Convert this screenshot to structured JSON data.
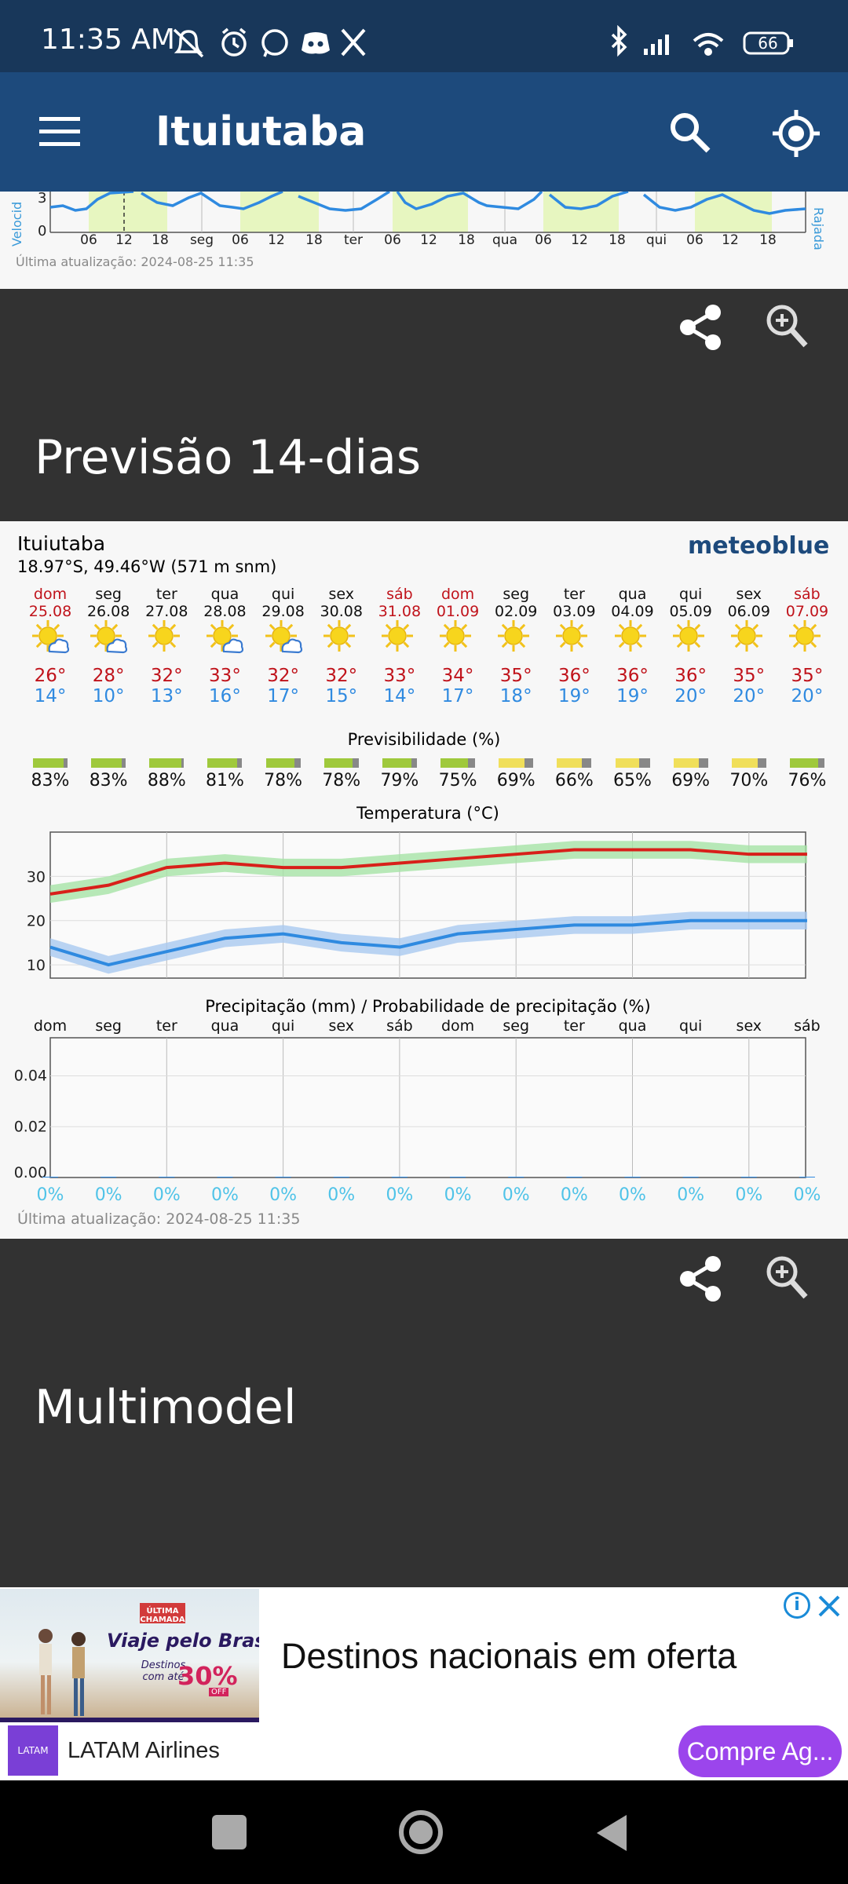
{
  "status_bar": {
    "time": "11:35 AM",
    "battery": "66",
    "notification_icons": [
      "mute-icon",
      "alarm-icon",
      "whatsapp-icon",
      "discord-icon",
      "x-icon"
    ],
    "system_icons": [
      "bluetooth-icon",
      "signal-icon",
      "wifi-icon",
      "battery-icon"
    ]
  },
  "app_bar": {
    "title": "Ituiutaba",
    "icons": [
      "menu-icon",
      "search-icon",
      "location-icon"
    ]
  },
  "top_chart": {
    "ytick_labels": [
      "3",
      "0"
    ],
    "left_axis_label": "Velocid",
    "right_axis_label": "Rajada",
    "xtick_labels": [
      "06",
      "12",
      "18",
      "seg",
      "06",
      "12",
      "18",
      "ter",
      "06",
      "12",
      "18",
      "qua",
      "06",
      "12",
      "18",
      "qui",
      "06",
      "12",
      "18"
    ],
    "last_update": "Última atualização: 2024-08-25 11:35"
  },
  "forecast_section": {
    "heading": "Previsão 14-dias",
    "share_icon": "share-icon",
    "zoom_icon": "zoom-in-icon"
  },
  "forecast": {
    "location": "Ituiutaba",
    "coords": "18.97°S, 49.46°W (571 m snm)",
    "brand": "meteoblue",
    "days": [
      {
        "dow": "dom",
        "date": "25.08",
        "weekend": true,
        "icon": "sun-cloud-icon",
        "tmax": "26°",
        "tmin": "14°",
        "pred": "83%"
      },
      {
        "dow": "seg",
        "date": "26.08",
        "weekend": false,
        "icon": "sun-cloud-icon",
        "tmax": "28°",
        "tmin": "10°",
        "pred": "83%"
      },
      {
        "dow": "ter",
        "date": "27.08",
        "weekend": false,
        "icon": "sun-icon",
        "tmax": "32°",
        "tmin": "13°",
        "pred": "88%"
      },
      {
        "dow": "qua",
        "date": "28.08",
        "weekend": false,
        "icon": "sun-cloud-icon",
        "tmax": "33°",
        "tmin": "16°",
        "pred": "81%"
      },
      {
        "dow": "qui",
        "date": "29.08",
        "weekend": false,
        "icon": "sun-cloud-icon",
        "tmax": "32°",
        "tmin": "17°",
        "pred": "78%"
      },
      {
        "dow": "sex",
        "date": "30.08",
        "weekend": false,
        "icon": "sun-icon",
        "tmax": "32°",
        "tmin": "15°",
        "pred": "78%"
      },
      {
        "dow": "sáb",
        "date": "31.08",
        "weekend": true,
        "icon": "sun-icon",
        "tmax": "33°",
        "tmin": "14°",
        "pred": "79%"
      },
      {
        "dow": "dom",
        "date": "01.09",
        "weekend": true,
        "icon": "sun-icon",
        "tmax": "34°",
        "tmin": "17°",
        "pred": "75%"
      },
      {
        "dow": "seg",
        "date": "02.09",
        "weekend": false,
        "icon": "sun-icon",
        "tmax": "35°",
        "tmin": "18°",
        "pred": "69%"
      },
      {
        "dow": "ter",
        "date": "03.09",
        "weekend": false,
        "icon": "sun-icon",
        "tmax": "36°",
        "tmin": "19°",
        "pred": "66%"
      },
      {
        "dow": "qua",
        "date": "04.09",
        "weekend": false,
        "icon": "sun-icon",
        "tmax": "36°",
        "tmin": "19°",
        "pred": "65%"
      },
      {
        "dow": "qui",
        "date": "05.09",
        "weekend": false,
        "icon": "sun-icon",
        "tmax": "36°",
        "tmin": "20°",
        "pred": "69%"
      },
      {
        "dow": "sex",
        "date": "06.09",
        "weekend": false,
        "icon": "sun-icon",
        "tmax": "35°",
        "tmin": "20°",
        "pred": "70%"
      },
      {
        "dow": "sáb",
        "date": "07.09",
        "weekend": true,
        "icon": "sun-icon",
        "tmax": "35°",
        "tmin": "20°",
        "pred": "76%"
      }
    ],
    "pred_title": "Previsibilidade (%)",
    "pred_colors": {
      "high": "#9fc93c",
      "low": "#f0df5a",
      "bar_end": "#888888"
    },
    "last_update": "Última atualização: 2024-08-25 11:35"
  },
  "chart_data": [
    {
      "type": "line",
      "title": "Temperatura (°C)",
      "categories": [
        "dom",
        "seg",
        "ter",
        "qua",
        "qui",
        "sex",
        "sáb",
        "dom",
        "seg",
        "ter",
        "qua",
        "qui",
        "sex",
        "sáb"
      ],
      "ylim": [
        7,
        40
      ],
      "yticks": [
        10,
        20,
        30
      ],
      "series": [
        {
          "values": [
            26,
            28,
            32,
            33,
            32,
            32,
            33,
            34,
            35,
            36,
            36,
            36,
            35,
            35
          ],
          "color": "#d8201a",
          "band_color": "#a6e3a6",
          "band": 2
        },
        {
          "values": [
            14,
            10,
            13,
            16,
            17,
            15,
            14,
            17,
            18,
            19,
            19,
            20,
            20,
            20
          ],
          "color": "#2f8ae0",
          "band_color": "#a9c9f0",
          "band": 2
        }
      ],
      "grid": true
    },
    {
      "type": "bar",
      "title": "Precipitação (mm) / Probabilidade de precipitação (%)",
      "categories": [
        "dom",
        "seg",
        "ter",
        "qua",
        "qui",
        "sex",
        "sáb",
        "dom",
        "seg",
        "ter",
        "qua",
        "qui",
        "sex",
        "sáb"
      ],
      "values": [
        0,
        0,
        0,
        0,
        0,
        0,
        0,
        0,
        0,
        0,
        0,
        0,
        0,
        0
      ],
      "probabilities": [
        "0%",
        "0%",
        "0%",
        "0%",
        "0%",
        "0%",
        "0%",
        "0%",
        "0%",
        "0%",
        "0%",
        "0%",
        "0%",
        "0%"
      ],
      "ylim": [
        0,
        0.055
      ],
      "yticks": [
        "0.04",
        "0.02",
        "0.00"
      ],
      "grid": true
    }
  ],
  "multimodel_section": {
    "heading": "Multimodel"
  },
  "ad": {
    "image_headline": "Viaje pelo Brasil",
    "image_sub": "Destinos com até",
    "image_discount": "30%",
    "image_off": "OFF",
    "image_brand": "ÚLTIMA CHAMADA",
    "headline": "Destinos nacionais em oferta",
    "advertiser": "LATAM Airlines",
    "advertiser_logo": "LATAM",
    "cta": "Compre Ag...",
    "info_icon": "info-icon",
    "close_icon": "close-icon"
  },
  "nav_bar": {
    "icons": [
      "recents-icon",
      "home-icon",
      "back-icon"
    ]
  }
}
